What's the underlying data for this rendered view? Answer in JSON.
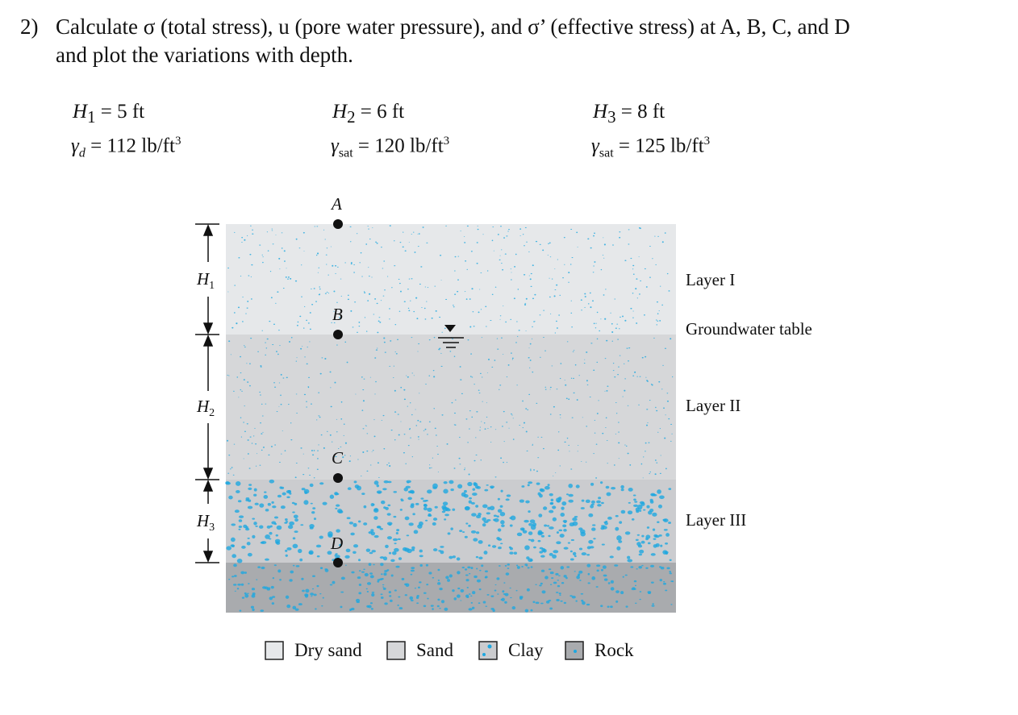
{
  "question": {
    "number": "2)",
    "line1": "Calculate σ (total stress), u (pore water pressure), and σ’ (effective stress) at A, B, C, and D",
    "line2": "and plot the variations with depth."
  },
  "parameters": [
    {
      "h_symbol": "H",
      "h_sub": "1",
      "h_value": "= 5 ft",
      "gamma_symbol": "γ",
      "gamma_sub": "d",
      "gamma_value": "= 112 lb/ft",
      "unit_exp": "3"
    },
    {
      "h_symbol": "H",
      "h_sub": "2",
      "h_value": "= 6 ft",
      "gamma_symbol": "γ",
      "gamma_sub": "sat",
      "gamma_value": "= 120 lb/ft",
      "unit_exp": "3"
    },
    {
      "h_symbol": "H",
      "h_sub": "3",
      "h_value": "= 8 ft",
      "gamma_symbol": "γ",
      "gamma_sub": "sat",
      "gamma_value": "= 125 lb/ft",
      "unit_exp": "3"
    }
  ],
  "diagram": {
    "points": [
      "A",
      "B",
      "C",
      "D"
    ],
    "dimensions": [
      {
        "symbol": "H",
        "sub": "1"
      },
      {
        "symbol": "H",
        "sub": "2"
      },
      {
        "symbol": "H",
        "sub": "3"
      }
    ],
    "right_labels": [
      "Layer I",
      "Groundwater table",
      "Layer II",
      "Layer III"
    ],
    "legend": [
      "Dry sand",
      "Sand",
      "Clay",
      "Rock"
    ],
    "colors": {
      "dry_sand": "#e6e8ea",
      "sand": "#d6d7d9",
      "clay": "#cbcccf",
      "rock": "#a9abae",
      "grain": "#1ea7e0"
    }
  }
}
